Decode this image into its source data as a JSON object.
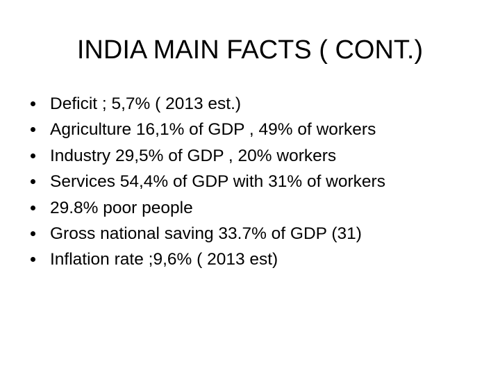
{
  "slide": {
    "title": "INDIA MAIN FACTS ( CONT.)",
    "bullets": [
      "Deficit ; 5,7% ( 2013 est.)",
      "Agriculture 16,1% of GDP , 49% of workers",
      "Industry 29,5% of GDP , 20% workers",
      "Services 54,4% of GDP with 31% of workers",
      "29.8% poor people",
      "Gross national saving 33.7% of GDP (31)",
      "Inflation rate ;9,6% ( 2013 est)"
    ]
  }
}
